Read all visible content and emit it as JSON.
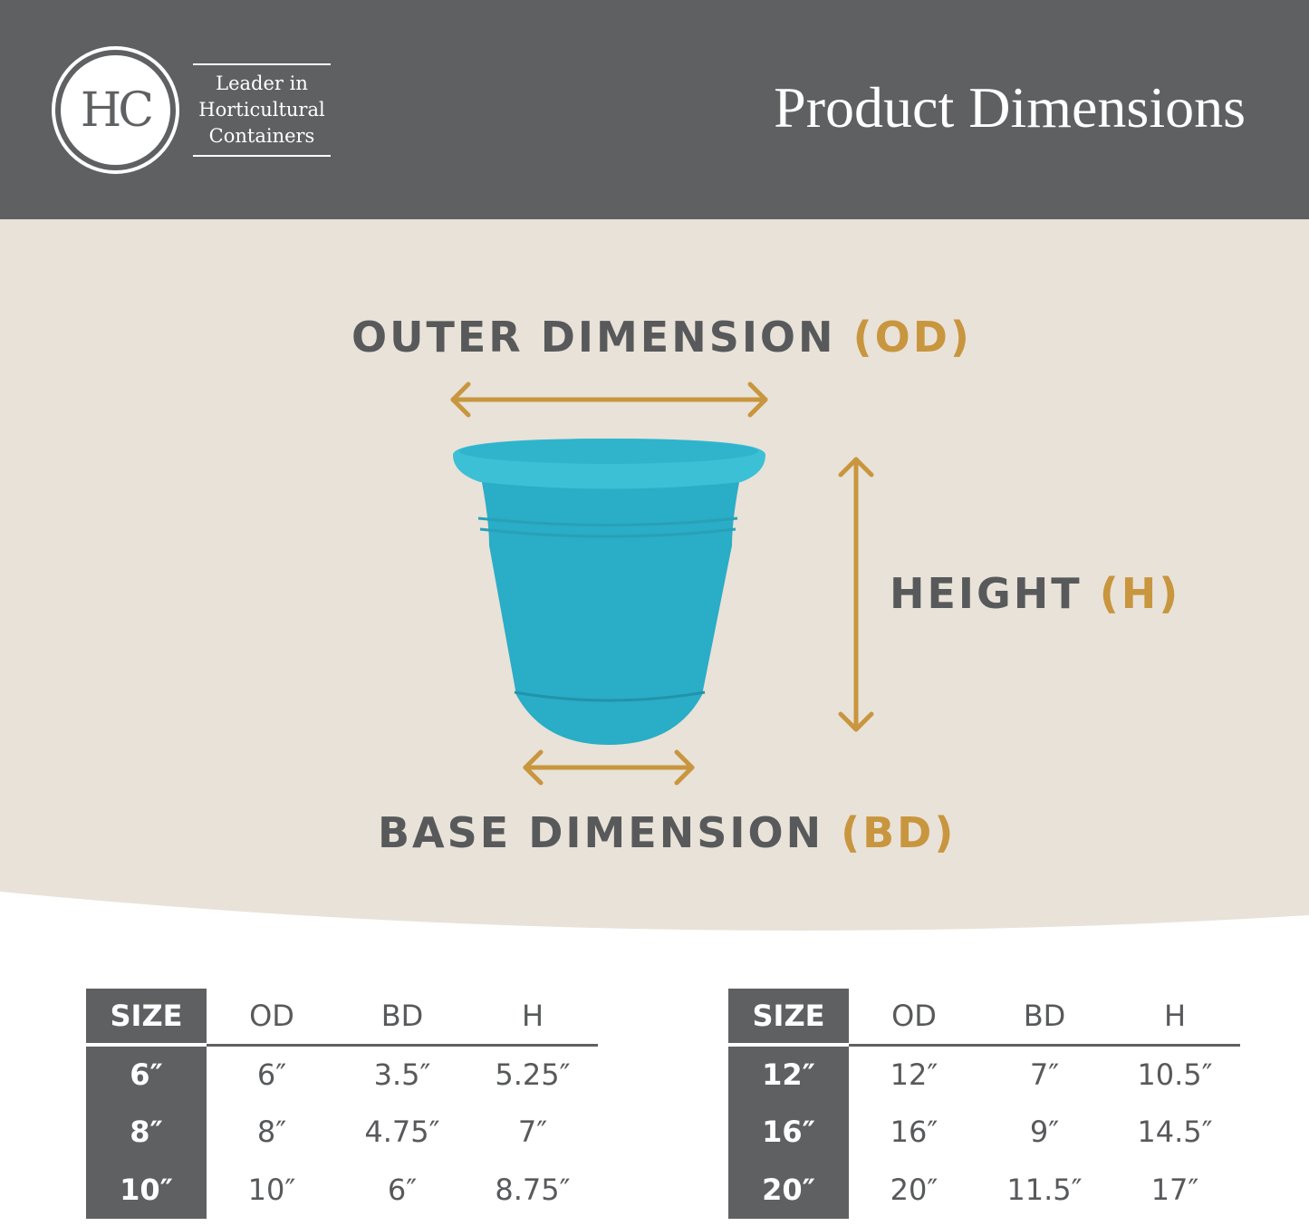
{
  "header": {
    "logo_text": "HC",
    "tagline": [
      "Leader in",
      "Horticultural",
      "Containers"
    ],
    "title": "Product Dimensions"
  },
  "diagram": {
    "outer": {
      "label": "OUTER DIMENSION",
      "abbr": "(OD)"
    },
    "height": {
      "label": "HEIGHT",
      "abbr": "(H)"
    },
    "base": {
      "label": "BASE DIMENSION",
      "abbr": "(BD)"
    },
    "pot_color": "#2fb4cc",
    "accent_color": "#c8963e"
  },
  "tables": [
    {
      "headers": [
        "SIZE",
        "OD",
        "BD",
        "H"
      ],
      "rows": [
        [
          "6″",
          "6″",
          "3.5″",
          "5.25″"
        ],
        [
          "8″",
          "8″",
          "4.75″",
          "7″"
        ],
        [
          "10″",
          "10″",
          "6″",
          "8.75″"
        ]
      ]
    },
    {
      "headers": [
        "SIZE",
        "OD",
        "BD",
        "H"
      ],
      "rows": [
        [
          "12″",
          "12″",
          "7″",
          "10.5″"
        ],
        [
          "16″",
          "16″",
          "9″",
          "14.5″"
        ],
        [
          "20″",
          "20″",
          "11.5″",
          "17″"
        ]
      ]
    }
  ]
}
